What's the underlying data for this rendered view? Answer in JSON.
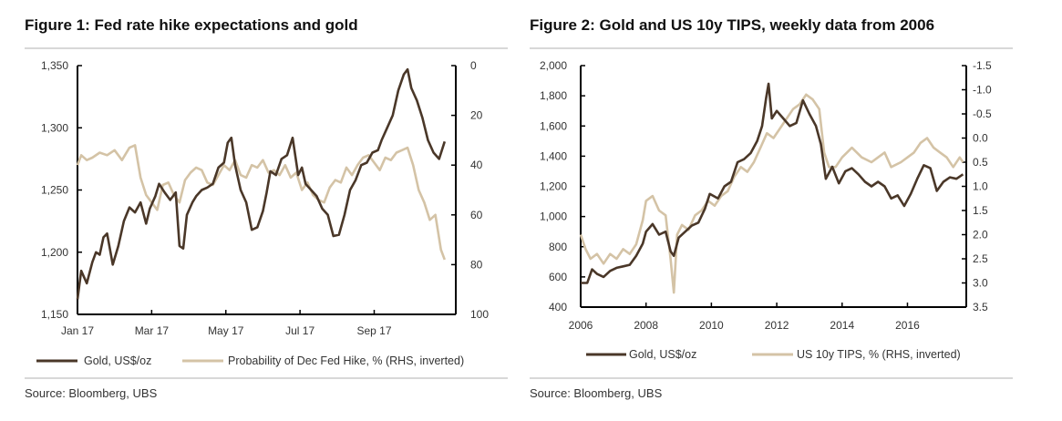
{
  "figures": [
    {
      "title": "Figure 1: Fed rate hike expectations and gold",
      "source": "Source:  Bloomberg, UBS"
    },
    {
      "title": "Figure 2: Gold and US 10y TIPS, weekly data from 2006",
      "source": "Source:  Bloomberg, UBS"
    }
  ],
  "colors": {
    "gold": "#4a3728",
    "secondary": "#d4c3a6",
    "axis": "#000000"
  },
  "chart_data": [
    {
      "type": "line",
      "title": "Figure 1: Fed rate hike expectations and gold",
      "x_tick_labels": [
        "Jan 17",
        "Mar 17",
        "May 17",
        "Jul 17",
        "Sep 17"
      ],
      "x_tick_positions": [
        0,
        2,
        4,
        6,
        8
      ],
      "x_range": [
        0,
        10.2
      ],
      "y_left": {
        "range": [
          1150,
          1350
        ],
        "ticks": [
          1150,
          1200,
          1250,
          1300,
          1350
        ],
        "tick_labels": [
          "1,150",
          "1,200",
          "1,250",
          "1,300",
          "1,350"
        ]
      },
      "y_right": {
        "range": [
          0,
          100
        ],
        "inverted": true,
        "ticks": [
          0,
          20,
          40,
          60,
          80,
          100
        ],
        "tick_labels": [
          "0",
          "20",
          "40",
          "60",
          "80",
          "100"
        ]
      },
      "series": [
        {
          "name": "Gold, US$/oz",
          "axis": "left",
          "color": "#4a3728",
          "x": [
            0,
            0.1,
            0.25,
            0.4,
            0.5,
            0.6,
            0.7,
            0.8,
            0.95,
            1.1,
            1.25,
            1.4,
            1.55,
            1.7,
            1.85,
            1.95,
            2.1,
            2.2,
            2.35,
            2.5,
            2.65,
            2.75,
            2.85,
            2.95,
            3.1,
            3.2,
            3.35,
            3.5,
            3.65,
            3.8,
            3.95,
            4.05,
            4.15,
            4.25,
            4.4,
            4.55,
            4.7,
            4.85,
            5.0,
            5.1,
            5.2,
            5.35,
            5.5,
            5.65,
            5.8,
            5.95,
            6.05,
            6.15,
            6.3,
            6.45,
            6.6,
            6.75,
            6.9,
            7.05,
            7.2,
            7.35,
            7.5,
            7.65,
            7.8,
            7.95,
            8.1,
            8.2,
            8.35,
            8.5,
            8.65,
            8.8,
            8.9,
            9.0,
            9.15,
            9.3,
            9.45,
            9.6,
            9.75,
            9.9
          ],
          "y": [
            1162,
            1185,
            1175,
            1192,
            1200,
            1198,
            1212,
            1215,
            1190,
            1205,
            1225,
            1236,
            1232,
            1240,
            1223,
            1235,
            1245,
            1255,
            1248,
            1242,
            1248,
            1205,
            1203,
            1230,
            1240,
            1245,
            1250,
            1252,
            1255,
            1268,
            1272,
            1288,
            1292,
            1270,
            1250,
            1240,
            1218,
            1220,
            1233,
            1248,
            1265,
            1262,
            1275,
            1278,
            1292,
            1262,
            1268,
            1255,
            1250,
            1245,
            1235,
            1230,
            1213,
            1214,
            1230,
            1250,
            1258,
            1270,
            1272,
            1280,
            1282,
            1290,
            1300,
            1310,
            1330,
            1343,
            1347,
            1332,
            1322,
            1308,
            1290,
            1280,
            1275,
            1289
          ]
        },
        {
          "name": "Probability of Dec Fed Hike, % (RHS, inverted)",
          "axis": "right",
          "color": "#d4c3a6",
          "x": [
            0,
            0.1,
            0.25,
            0.4,
            0.6,
            0.8,
            1.0,
            1.2,
            1.4,
            1.55,
            1.7,
            1.85,
            2.0,
            2.15,
            2.3,
            2.45,
            2.6,
            2.75,
            2.9,
            3.05,
            3.2,
            3.35,
            3.5,
            3.65,
            3.8,
            3.95,
            4.1,
            4.25,
            4.4,
            4.55,
            4.7,
            4.85,
            5.0,
            5.15,
            5.3,
            5.45,
            5.6,
            5.75,
            5.9,
            6.05,
            6.2,
            6.35,
            6.5,
            6.65,
            6.8,
            6.95,
            7.1,
            7.25,
            7.4,
            7.55,
            7.7,
            7.85,
            8.0,
            8.15,
            8.3,
            8.45,
            8.6,
            8.75,
            8.9,
            9.05,
            9.2,
            9.35,
            9.5,
            9.65,
            9.8,
            9.9
          ],
          "y": [
            40,
            36,
            38,
            37,
            35,
            36,
            34,
            38,
            33,
            32,
            45,
            52,
            55,
            58,
            48,
            47,
            52,
            55,
            46,
            43,
            41,
            42,
            47,
            48,
            44,
            40,
            42,
            38,
            44,
            45,
            40,
            41,
            38,
            43,
            42,
            44,
            40,
            45,
            43,
            50,
            47,
            52,
            54,
            55,
            49,
            46,
            47,
            41,
            44,
            40,
            37,
            36,
            39,
            42,
            37,
            38,
            35,
            34,
            33,
            40,
            50,
            55,
            62,
            60,
            74,
            78
          ]
        }
      ]
    },
    {
      "type": "line",
      "title": "Figure 2: Gold and US 10y TIPS, weekly data from 2006",
      "x_tick_labels": [
        "2006",
        "2008",
        "2010",
        "2012",
        "2014",
        "2016"
      ],
      "x_tick_positions": [
        2006,
        2008,
        2010,
        2012,
        2014,
        2016
      ],
      "x_range": [
        2006,
        2017.8
      ],
      "y_left": {
        "range": [
          400,
          2000
        ],
        "ticks": [
          400,
          600,
          800,
          1000,
          1200,
          1400,
          1600,
          1800,
          2000
        ],
        "tick_labels": [
          "400",
          "600",
          "800",
          "1,000",
          "1,200",
          "1,400",
          "1,600",
          "1,800",
          "2,000"
        ]
      },
      "y_right": {
        "range": [
          -1.5,
          3.5
        ],
        "inverted": true,
        "ticks": [
          -1.5,
          -1.0,
          -0.5,
          0.0,
          0.5,
          1.0,
          1.5,
          2.0,
          2.5,
          3.0,
          3.5
        ],
        "tick_labels": [
          "-1.5",
          "-1.0",
          "-0.5",
          "0.0",
          "0.5",
          "1.0",
          "1.5",
          "2.0",
          "2.5",
          "3.0",
          "3.5"
        ]
      },
      "series": [
        {
          "name": "Gold, US$/oz",
          "axis": "left",
          "color": "#4a3728",
          "x": [
            2006.0,
            2006.2,
            2006.35,
            2006.5,
            2006.7,
            2006.9,
            2007.1,
            2007.3,
            2007.5,
            2007.7,
            2007.9,
            2008.0,
            2008.2,
            2008.4,
            2008.6,
            2008.75,
            2008.85,
            2009.0,
            2009.2,
            2009.4,
            2009.6,
            2009.8,
            2009.95,
            2010.2,
            2010.4,
            2010.6,
            2010.8,
            2011.0,
            2011.2,
            2011.4,
            2011.55,
            2011.67,
            2011.75,
            2011.85,
            2012.0,
            2012.2,
            2012.4,
            2012.6,
            2012.8,
            2013.0,
            2013.2,
            2013.35,
            2013.5,
            2013.7,
            2013.9,
            2014.1,
            2014.3,
            2014.5,
            2014.7,
            2014.9,
            2015.1,
            2015.3,
            2015.5,
            2015.7,
            2015.9,
            2016.1,
            2016.3,
            2016.5,
            2016.7,
            2016.9,
            2017.1,
            2017.3,
            2017.5,
            2017.7
          ],
          "y": [
            560,
            560,
            650,
            620,
            600,
            640,
            660,
            670,
            680,
            740,
            820,
            900,
            950,
            880,
            900,
            770,
            740,
            860,
            900,
            940,
            960,
            1050,
            1150,
            1120,
            1200,
            1230,
            1360,
            1380,
            1420,
            1500,
            1600,
            1780,
            1880,
            1650,
            1700,
            1650,
            1600,
            1620,
            1770,
            1680,
            1600,
            1480,
            1250,
            1330,
            1220,
            1300,
            1320,
            1280,
            1230,
            1200,
            1230,
            1200,
            1120,
            1140,
            1070,
            1150,
            1250,
            1340,
            1320,
            1170,
            1230,
            1260,
            1250,
            1280
          ]
        },
        {
          "name": "US 10y TIPS, % (RHS, inverted)",
          "axis": "right",
          "color": "#d4c3a6",
          "x": [
            2006.0,
            2006.15,
            2006.3,
            2006.5,
            2006.7,
            2006.9,
            2007.1,
            2007.3,
            2007.5,
            2007.7,
            2007.9,
            2008.0,
            2008.2,
            2008.4,
            2008.6,
            2008.75,
            2008.85,
            2008.95,
            2009.1,
            2009.3,
            2009.5,
            2009.7,
            2009.9,
            2010.1,
            2010.3,
            2010.5,
            2010.7,
            2010.9,
            2011.1,
            2011.3,
            2011.5,
            2011.7,
            2011.9,
            2012.1,
            2012.3,
            2012.5,
            2012.7,
            2012.9,
            2013.1,
            2013.3,
            2013.45,
            2013.6,
            2013.8,
            2014.0,
            2014.3,
            2014.6,
            2014.9,
            2015.1,
            2015.3,
            2015.5,
            2015.8,
            2016.0,
            2016.2,
            2016.4,
            2016.6,
            2016.8,
            2017.0,
            2017.2,
            2017.4,
            2017.6,
            2017.7
          ],
          "y": [
            2.0,
            2.3,
            2.5,
            2.4,
            2.6,
            2.4,
            2.5,
            2.3,
            2.4,
            2.2,
            1.7,
            1.3,
            1.2,
            1.5,
            1.6,
            2.5,
            3.2,
            2.0,
            1.8,
            1.9,
            1.6,
            1.5,
            1.3,
            1.4,
            1.2,
            1.1,
            0.8,
            0.6,
            0.7,
            0.5,
            0.2,
            -0.1,
            0.0,
            -0.2,
            -0.4,
            -0.6,
            -0.7,
            -0.9,
            -0.8,
            -0.6,
            0.3,
            0.6,
            0.6,
            0.4,
            0.2,
            0.4,
            0.5,
            0.4,
            0.3,
            0.6,
            0.5,
            0.4,
            0.3,
            0.1,
            0.0,
            0.2,
            0.3,
            0.4,
            0.6,
            0.4,
            0.5
          ]
        }
      ]
    }
  ]
}
